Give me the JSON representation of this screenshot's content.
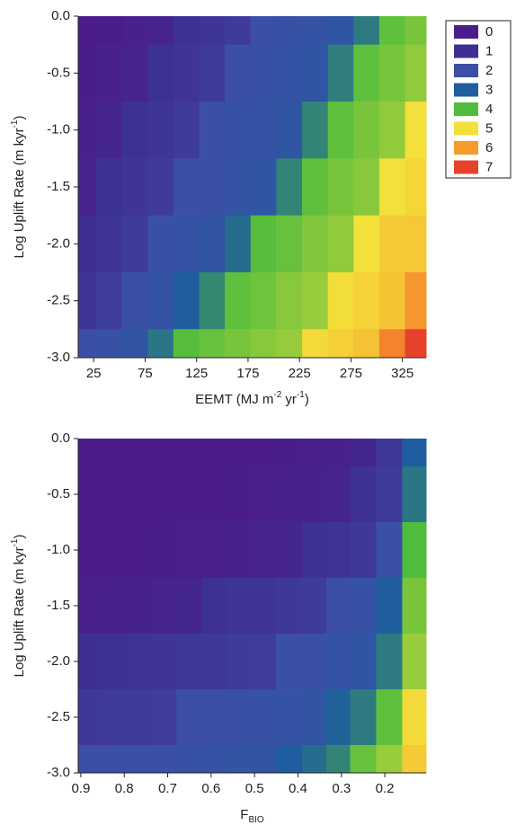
{
  "chart_data": [
    {
      "type": "contour",
      "x_label": [
        {
          "text": "EEMT (MJ m"
        },
        {
          "text": "-2",
          "sup": true
        },
        {
          "text": " yr"
        },
        {
          "text": "-1",
          "sup": true
        },
        {
          "text": ")"
        }
      ],
      "y_label": [
        {
          "text": "Log Uplift Rate (m kyr"
        },
        {
          "text": "-1",
          "sup": true
        },
        {
          "text": ")"
        }
      ],
      "xlim": [
        10,
        348
      ],
      "ylim": [
        -3,
        0
      ],
      "xticks": [
        25,
        75,
        125,
        175,
        225,
        275,
        325
      ],
      "yticks": [
        {
          "value": -3,
          "label": "-3.0"
        },
        -2.5,
        {
          "value": -2,
          "label": "-2.0"
        },
        -1.5,
        {
          "value": -1,
          "label": "-1.0"
        },
        -0.5,
        {
          "value": 0,
          "label": "0.0"
        }
      ],
      "levels": [
        0,
        1,
        2,
        3,
        4,
        5,
        6,
        7
      ],
      "colors": [
        "#4b1d8a",
        "#3e2f93",
        "#3d4ea6",
        "#1f5e9e",
        "#4fbc3d",
        "#f3e03a",
        "#f79a2e",
        "#e5412b"
      ],
      "x": [
        15,
        40,
        65,
        90,
        115,
        140,
        165,
        190,
        215,
        240,
        265,
        290,
        315,
        340
      ],
      "y": [
        0,
        -0.5,
        -1,
        -1.5,
        -2,
        -2.5,
        -3
      ],
      "z": [
        [
          0,
          0.1,
          0.4,
          0.8,
          1.1,
          1.4,
          1.8,
          2.1,
          2.4,
          2.6,
          2.9,
          3.6,
          4.2,
          4.5
        ],
        [
          0.1,
          0.4,
          0.8,
          1.1,
          1.4,
          1.8,
          2.1,
          2.4,
          2.6,
          2.9,
          3.7,
          4.2,
          4.5,
          4.8
        ],
        [
          0.4,
          0.8,
          1.1,
          1.4,
          1.8,
          2.1,
          2.4,
          2.6,
          2.9,
          3.8,
          4.2,
          4.5,
          4.8,
          5.0
        ],
        [
          0.75,
          1.1,
          1.4,
          1.8,
          2.1,
          2.3,
          2.6,
          2.9,
          3.8,
          4.2,
          4.5,
          4.7,
          5.0,
          5.3
        ],
        [
          1.0,
          1.4,
          1.8,
          2.2,
          2.5,
          2.8,
          3.3,
          4.1,
          4.3,
          4.6,
          4.8,
          5.0,
          5.6,
          5.7
        ],
        [
          1.3,
          1.9,
          2.3,
          2.6,
          3.0,
          3.9,
          4.2,
          4.4,
          4.7,
          4.9,
          5.1,
          5.4,
          5.8,
          6.1
        ],
        [
          2.0,
          2.4,
          2.8,
          3.5,
          4.1,
          4.3,
          4.5,
          4.7,
          4.9,
          5.2,
          5.5,
          5.9,
          6.5,
          7.3
        ]
      ]
    },
    {
      "type": "contour",
      "x_label": [
        {
          "text": "F"
        },
        {
          "text": "BIO",
          "sub": true
        }
      ],
      "y_label": [
        {
          "text": "Log Uplift Rate (m kyr"
        },
        {
          "text": "-1",
          "sup": true
        },
        {
          "text": ")"
        }
      ],
      "xlim": [
        0.906,
        0.105
      ],
      "ylim": [
        -3,
        0
      ],
      "xticks": [
        0.9,
        0.8,
        0.7,
        0.6,
        0.5,
        0.4,
        0.3,
        0.2
      ],
      "yticks": [
        {
          "value": -3,
          "label": "-3.0"
        },
        -2.5,
        {
          "value": -2,
          "label": "-2.0"
        },
        -1.5,
        {
          "value": -1,
          "label": "-1.0"
        },
        -0.5,
        {
          "value": 0,
          "label": "0.0"
        }
      ],
      "colors": [
        "#4b1d8a",
        "#3e2f93",
        "#3d4ea6",
        "#1f5e9e",
        "#4fbc3d",
        "#f3e03a",
        "#f79a2e",
        "#e5412b"
      ],
      "x": [
        0.88,
        0.82,
        0.76,
        0.71,
        0.65,
        0.59,
        0.54,
        0.48,
        0.42,
        0.36,
        0.31,
        0.25,
        0.19,
        0.13
      ],
      "y": [
        0,
        -0.5,
        -1,
        -1.5,
        -2,
        -2.5,
        -3
      ],
      "z": [
        [
          0,
          0,
          0,
          0,
          0,
          0,
          0,
          0,
          0.1,
          0.3,
          0.6,
          0.9,
          1.5,
          3.0
        ],
        [
          0,
          0,
          0,
          0,
          0,
          0,
          0.1,
          0.2,
          0.4,
          0.6,
          0.8,
          1.2,
          1.8,
          3.5
        ],
        [
          0,
          0,
          0,
          0.1,
          0.2,
          0.3,
          0.5,
          0.7,
          0.9,
          1.1,
          1.3,
          1.6,
          2.3,
          4.0
        ],
        [
          0.3,
          0.4,
          0.6,
          0.8,
          0.9,
          1.1,
          1.3,
          1.4,
          1.6,
          1.8,
          2.0,
          2.4,
          3.0,
          4.5
        ],
        [
          1.0,
          1.1,
          1.3,
          1.4,
          1.5,
          1.6,
          1.8,
          1.9,
          2.1,
          2.3,
          2.6,
          2.9,
          3.6,
          4.9
        ],
        [
          1.6,
          1.7,
          1.8,
          1.9,
          2.0,
          2.1,
          2.3,
          2.4,
          2.6,
          2.8,
          3.1,
          3.6,
          4.2,
          5.2
        ],
        [
          2.0,
          2.1,
          2.2,
          2.3,
          2.4,
          2.5,
          2.7,
          2.8,
          3.0,
          3.3,
          3.8,
          4.3,
          4.9,
          5.6
        ]
      ]
    }
  ]
}
